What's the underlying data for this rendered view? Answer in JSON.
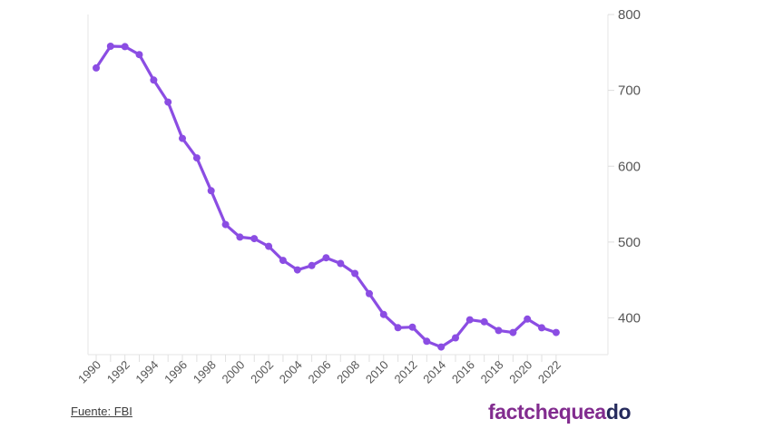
{
  "chart_data": {
    "type": "line",
    "x": [
      1990,
      1991,
      1992,
      1993,
      1994,
      1995,
      1996,
      1997,
      1998,
      1999,
      2000,
      2001,
      2002,
      2003,
      2004,
      2005,
      2006,
      2007,
      2008,
      2009,
      2010,
      2011,
      2012,
      2013,
      2014,
      2015,
      2016,
      2017,
      2018,
      2019,
      2020,
      2021,
      2022
    ],
    "values": [
      729.6,
      758.2,
      757.7,
      747.1,
      713.6,
      684.5,
      636.6,
      611.0,
      567.6,
      523.0,
      506.5,
      504.5,
      494.4,
      475.8,
      463.2,
      469.0,
      479.3,
      471.8,
      458.6,
      431.9,
      404.5,
      387.1,
      387.8,
      369.1,
      361.6,
      373.7,
      397.5,
      394.9,
      383.4,
      380.8,
      398.5,
      387.0,
      380.7
    ],
    "title": "",
    "xlabel": "",
    "ylabel": "",
    "x_tick_labels": [
      "1990",
      "1992",
      "1994",
      "1996",
      "1998",
      "2000",
      "2002",
      "2004",
      "2006",
      "2008",
      "2010",
      "2012",
      "2014",
      "2016",
      "2018",
      "2020",
      "2022"
    ],
    "y_ticks": [
      400,
      500,
      600,
      700,
      800
    ],
    "ylim": [
      351,
      800
    ],
    "xlim": [
      1990,
      2022
    ],
    "y_axis_side": "right",
    "grid": false,
    "legend_position": "none",
    "line_color": "#8B4DE3",
    "marker": "circle"
  },
  "footer": {
    "source_label": "Fuente: FBI"
  },
  "logo": {
    "text_primary": "factchequea",
    "text_secondary": "do",
    "color_primary": "#822C8F",
    "color_secondary": "#252A5C"
  }
}
